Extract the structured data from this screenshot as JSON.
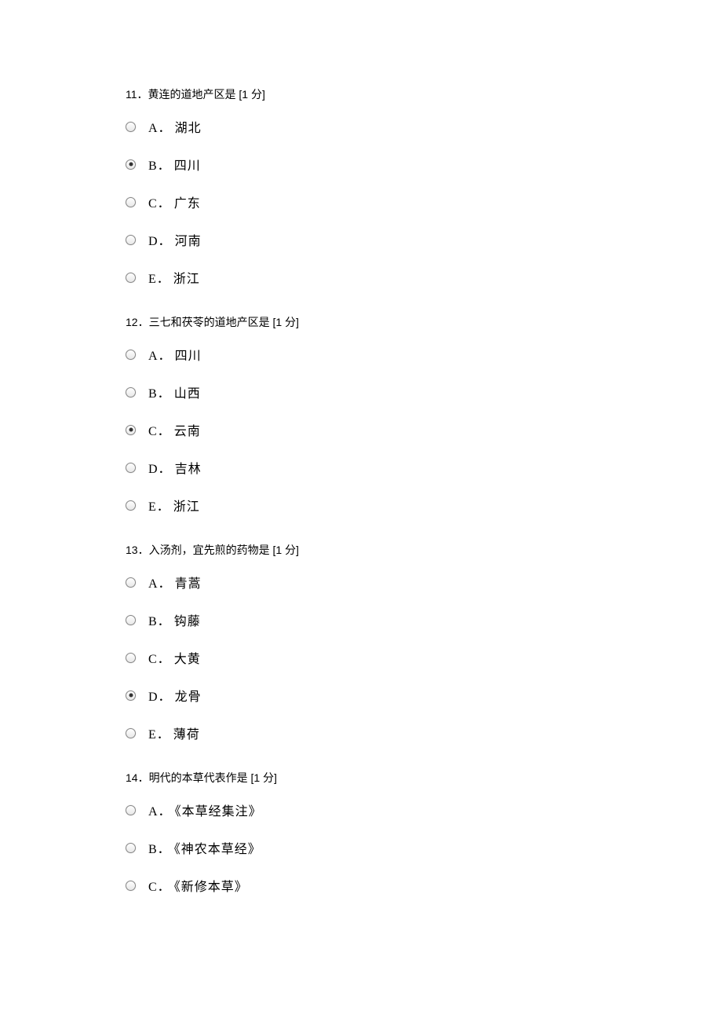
{
  "questions": [
    {
      "number": "11",
      "text": "黄连的道地产区是",
      "points": "[1 分]",
      "selected_index": 1,
      "options": [
        {
          "letter": "A．",
          "text": "湖北"
        },
        {
          "letter": "B．",
          "text": "四川"
        },
        {
          "letter": "C．",
          "text": "广东"
        },
        {
          "letter": "D．",
          "text": "河南"
        },
        {
          "letter": "E．",
          "text": "浙江"
        }
      ]
    },
    {
      "number": "12",
      "text": "三七和茯苓的道地产区是",
      "points": "[1 分]",
      "selected_index": 2,
      "options": [
        {
          "letter": "A．",
          "text": "四川"
        },
        {
          "letter": "B．",
          "text": "山西"
        },
        {
          "letter": "C．",
          "text": "云南"
        },
        {
          "letter": "D．",
          "text": "吉林"
        },
        {
          "letter": "E．",
          "text": "浙江"
        }
      ]
    },
    {
      "number": "13",
      "text": "入汤剂，宜先煎的药物是",
      "points": "[1 分]",
      "selected_index": 3,
      "options": [
        {
          "letter": "A．",
          "text": "青蒿"
        },
        {
          "letter": "B．",
          "text": "钩藤"
        },
        {
          "letter": "C．",
          "text": "大黄"
        },
        {
          "letter": "D．",
          "text": "龙骨"
        },
        {
          "letter": "E．",
          "text": "薄荷"
        }
      ]
    },
    {
      "number": "14",
      "text": "明代的本草代表作是",
      "points": "[1 分]",
      "selected_index": -1,
      "options": [
        {
          "letter": "A．",
          "text": "《本草经集注》"
        },
        {
          "letter": "B．",
          "text": "《神农本草经》"
        },
        {
          "letter": "C．",
          "text": "《新修本草》"
        }
      ]
    }
  ],
  "colors": {
    "background": "#ffffff",
    "text": "#000000",
    "radio_border": "#888888",
    "radio_dot": "#333333"
  },
  "fonts": {
    "title_family": "Arial, Microsoft YaHei, sans-serif",
    "title_size": 14,
    "option_family": "SimSun, 宋体, serif",
    "option_size": 16
  }
}
